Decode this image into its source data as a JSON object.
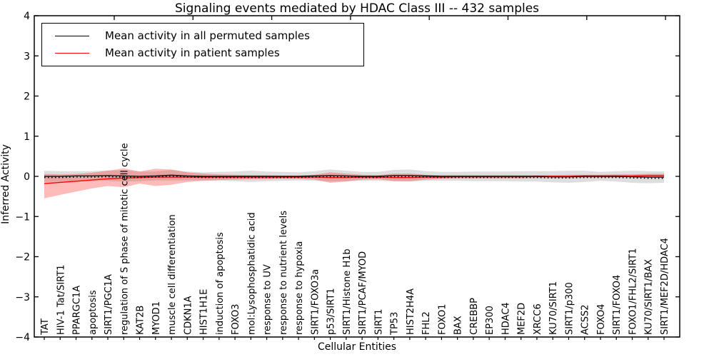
{
  "title": "Signaling events mediated by HDAC Class III -- 432 samples",
  "axes": {
    "xlabel": "Cellular Entities",
    "ylabel": "Inferred Activity",
    "ylim": [
      -4,
      4
    ],
    "ytick_labels": [
      "4",
      "3",
      "2",
      "1",
      "0",
      "−1",
      "−2",
      "−3",
      "−4"
    ]
  },
  "legend": {
    "entries": [
      {
        "label": "Mean activity in all permuted samples",
        "color": "#000000"
      },
      {
        "label": "Mean activity in patient samples",
        "color": "#ff0000"
      }
    ]
  },
  "colors": {
    "permuted_line": "#000000",
    "patient_line": "#ff0000",
    "permuted_band": "rgba(0,0,0,0.13)",
    "patient_band": "rgba(255,0,0,0.27)",
    "axis": "#000000"
  },
  "chart_data": {
    "type": "line",
    "title": "Signaling events mediated by HDAC Class III -- 432 samples",
    "xlabel": "Cellular Entities",
    "ylabel": "Inferred Activity",
    "ylim": [
      -4,
      4
    ],
    "yticks": [
      4,
      3,
      2,
      1,
      0,
      -1,
      -2,
      -3,
      -4
    ],
    "grid": false,
    "legend_position": "upper left",
    "categories": [
      "TAT",
      "HIV-1 Tat/SIRT1",
      "PPARGC1A",
      "apoptosis",
      "SIRT1/PGC1A",
      "regulation of S phase of mitotic cell cycle",
      "KAT2B",
      "MYOD1",
      "muscle cell differentiation",
      "CDKN1A",
      "HIST1H1E",
      "induction of apoptosis",
      "FOXO3",
      "mol:Lysophosphatidic acid",
      "response to UV",
      "response to nutrient levels",
      "response to hypoxia",
      "SIRT1/FOXO3a",
      "p53/SIRT1",
      "SIRT1/Histone H1b",
      "SIRT1/PCAF/MYOD",
      "SIRT1",
      "TP53",
      "HIST2H4A",
      "FHL2",
      "FOXO1",
      "BAX",
      "CREBBP",
      "EP300",
      "HDAC4",
      "MEF2D",
      "XRCC6",
      "KU70/SIRT1",
      "SIRT1/p300",
      "ACSS2",
      "FOXO4",
      "SIRT1/FOXO4",
      "FOXO1/FHL2/SIRT1",
      "KU70/SIRT1/BAX",
      "SIRT1/MEF2D/HDAC4"
    ],
    "series": [
      {
        "name": "Mean activity in all permuted samples",
        "color": "#000000",
        "values": [
          0.0,
          0.0,
          0.01,
          0.01,
          0.02,
          0.01,
          0.0,
          0.01,
          0.03,
          0.01,
          0.0,
          0.0,
          0.0,
          0.0,
          0.0,
          0.0,
          0.0,
          0.01,
          0.02,
          0.01,
          0.0,
          0.0,
          0.02,
          0.02,
          0.01,
          0.0,
          0.0,
          0.0,
          0.0,
          0.0,
          0.0,
          0.0,
          -0.01,
          -0.01,
          0.0,
          0.0,
          0.0,
          -0.01,
          -0.02,
          -0.02
        ],
        "band_lo": [
          -0.14,
          -0.13,
          -0.11,
          -0.11,
          -0.11,
          -0.13,
          -0.12,
          -0.1,
          -0.1,
          -0.1,
          -0.1,
          -0.11,
          -0.12,
          -0.14,
          -0.12,
          -0.11,
          -0.1,
          -0.11,
          -0.13,
          -0.12,
          -0.11,
          -0.11,
          -0.12,
          -0.13,
          -0.11,
          -0.11,
          -0.11,
          -0.12,
          -0.12,
          -0.12,
          -0.13,
          -0.13,
          -0.15,
          -0.16,
          -0.14,
          -0.11,
          -0.13,
          -0.16,
          -0.17,
          -0.16
        ],
        "band_hi": [
          0.14,
          0.13,
          0.13,
          0.13,
          0.15,
          0.15,
          0.12,
          0.12,
          0.16,
          0.12,
          0.1,
          0.11,
          0.12,
          0.14,
          0.12,
          0.11,
          0.1,
          0.13,
          0.17,
          0.14,
          0.11,
          0.11,
          0.16,
          0.17,
          0.13,
          0.11,
          0.11,
          0.12,
          0.12,
          0.12,
          0.13,
          0.13,
          0.13,
          0.14,
          0.14,
          0.11,
          0.13,
          0.14,
          0.13,
          0.12
        ]
      },
      {
        "name": "Mean activity in patient samples",
        "color": "#ff0000",
        "values": [
          -0.18,
          -0.15,
          -0.12,
          -0.09,
          -0.06,
          -0.04,
          -0.03,
          -0.02,
          -0.02,
          -0.02,
          -0.02,
          -0.02,
          -0.02,
          -0.02,
          -0.02,
          -0.02,
          -0.02,
          -0.02,
          -0.03,
          -0.03,
          -0.02,
          -0.02,
          -0.03,
          -0.03,
          -0.02,
          -0.02,
          -0.01,
          -0.01,
          -0.01,
          -0.01,
          -0.01,
          0.0,
          0.0,
          0.0,
          0.01,
          0.01,
          0.01,
          0.01,
          0.02,
          0.02
        ],
        "band_lo": [
          -0.55,
          -0.46,
          -0.38,
          -0.3,
          -0.24,
          -0.27,
          -0.18,
          -0.24,
          -0.21,
          -0.14,
          -0.11,
          -0.09,
          -0.08,
          -0.07,
          -0.07,
          -0.06,
          -0.06,
          -0.08,
          -0.16,
          -0.13,
          -0.08,
          -0.07,
          -0.12,
          -0.12,
          -0.08,
          -0.06,
          -0.05,
          -0.05,
          -0.05,
          -0.05,
          -0.05,
          -0.04,
          -0.04,
          -0.04,
          -0.03,
          -0.03,
          -0.03,
          -0.02,
          -0.02,
          -0.02
        ],
        "band_hi": [
          0.06,
          0.05,
          0.06,
          0.09,
          0.14,
          0.2,
          0.12,
          0.19,
          0.17,
          0.1,
          0.07,
          0.05,
          0.04,
          0.03,
          0.03,
          0.02,
          0.02,
          0.04,
          0.1,
          0.07,
          0.04,
          0.03,
          0.07,
          0.07,
          0.04,
          0.03,
          0.03,
          0.03,
          0.03,
          0.03,
          0.03,
          0.03,
          0.03,
          0.04,
          0.04,
          0.04,
          0.05,
          0.05,
          0.06,
          0.06
        ]
      }
    ]
  }
}
